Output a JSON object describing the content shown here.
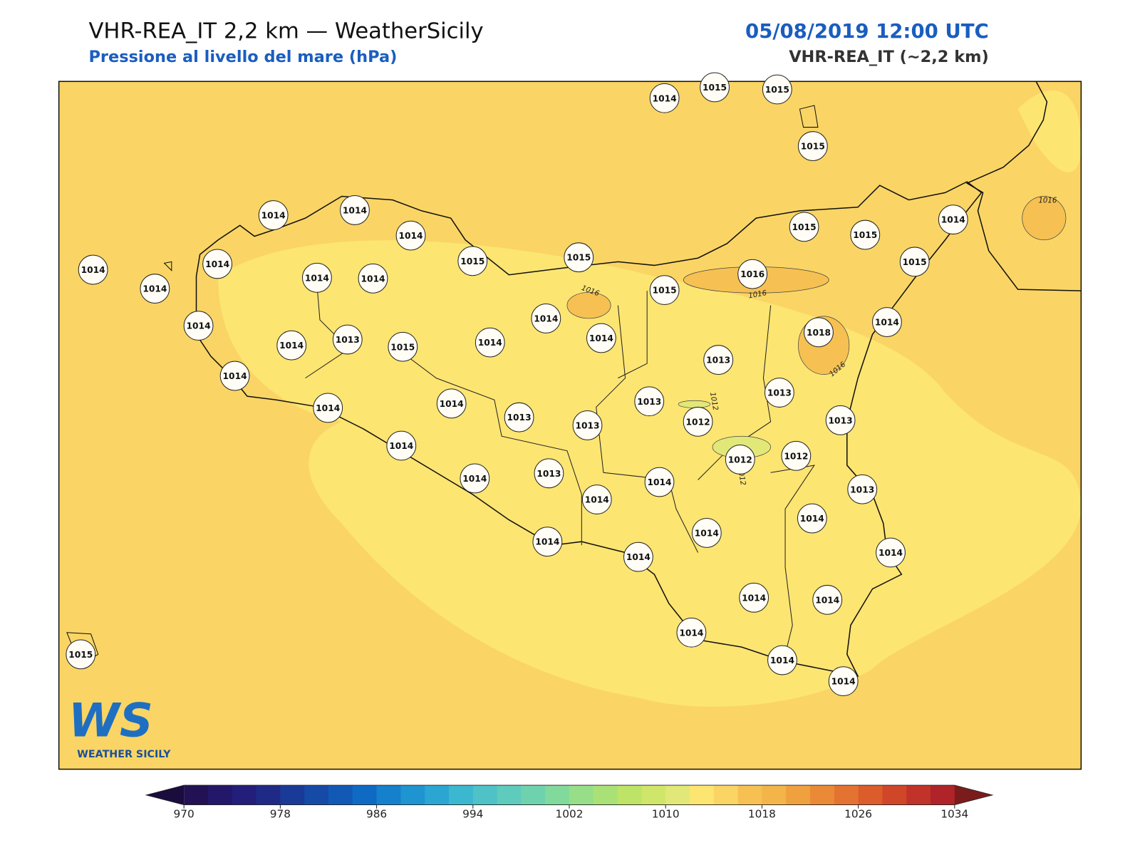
{
  "header": {
    "title": "VHR-REA_IT 2,2 km — WeatherSicily",
    "subtitle": "Pressione al livello del mare (hPa)",
    "datetime": "05/08/2019 12:00 UTC",
    "model": "VHR-REA_IT (~2,2 km)"
  },
  "map": {
    "stations": [
      1014,
      1015,
      1015,
      1015,
      1014,
      1014,
      1014,
      1015,
      1015,
      1015,
      1015,
      1014,
      1014,
      1014,
      1014,
      1014,
      1014,
      1015,
      1016,
      1015,
      1014,
      1014,
      1014,
      1014,
      1013,
      1015,
      1014,
      1014,
      1018,
      1013,
      1014,
      1013,
      1014,
      1014,
      1013,
      1013,
      1013,
      1012,
      1013,
      1014,
      1012,
      1012,
      1014,
      1013,
      1014,
      1014,
      1013,
      1014,
      1014,
      1014,
      1014,
      1014,
      1014,
      1014,
      1014,
      1014,
      1014,
      1015
    ],
    "contour_labels": [
      1016,
      1016,
      1016,
      1016,
      1012,
      1012
    ]
  },
  "colorbar": {
    "ticks": [
      970,
      978,
      986,
      994,
      1002,
      1010,
      1018,
      1026,
      1034
    ],
    "colors": [
      "#221253",
      "#23176a",
      "#231e79",
      "#1f2a87",
      "#1a3a97",
      "#164aa7",
      "#1259b6",
      "#0f6ac4",
      "#1580cc",
      "#1e94d0",
      "#2ba6d2",
      "#3bb7cf",
      "#4ec2c7",
      "#5ecbbd",
      "#6fd2ae",
      "#82d99c",
      "#97de89",
      "#aae177",
      "#bde466",
      "#cfe66b",
      "#e1e878",
      "#fde572",
      "#fad565",
      "#f6c152",
      "#f3b449",
      "#efa03f",
      "#ea8a37",
      "#e47331",
      "#dc5c2c",
      "#d04629",
      "#c13229",
      "#b02328"
    ],
    "under_color": "#1a0c3d",
    "over_color": "#7a1c1c"
  },
  "logo": {
    "mark": "WS",
    "name": "WEATHER SICILY"
  }
}
